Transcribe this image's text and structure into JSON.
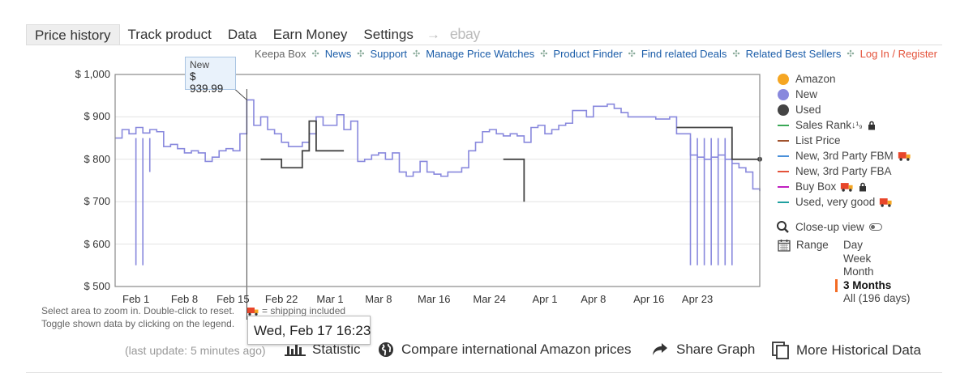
{
  "tabs": [
    "Price history",
    "Track product",
    "Data",
    "Earn Money",
    "Settings"
  ],
  "tab_arrow": "→",
  "tab_ebay": "ebay",
  "top_links": {
    "label": "Keepa Box",
    "sep": "✣",
    "items": [
      "News",
      "Support",
      "Manage Price Watches",
      "Product Finder",
      "Find related Deals",
      "Related Best Sellers",
      "Log In / Register"
    ]
  },
  "chart_data": {
    "type": "line",
    "ylim": [
      500,
      1000
    ],
    "yticks": [
      "$ 1,000",
      "$ 900",
      "$ 800",
      "$ 700",
      "$ 600",
      "$ 500"
    ],
    "xlim": [
      "Jan 29",
      "May 2"
    ],
    "xticks": [
      "Feb 1",
      "Feb 8",
      "Feb 15",
      "Feb 22",
      "Mar 1",
      "Mar 8",
      "Mar 16",
      "Mar 24",
      "Apr 1",
      "Apr 8",
      "Apr 16",
      "Apr 23"
    ],
    "series": [
      {
        "name": "New",
        "color": "#8888dd",
        "points": [
          [
            "Jan 29",
            850
          ],
          [
            "Jan 30",
            870
          ],
          [
            "Jan 31",
            860
          ],
          [
            "Feb 1",
            875
          ],
          [
            "Feb 2",
            862
          ],
          [
            "Feb 3",
            870
          ],
          [
            "Feb 4",
            865
          ],
          [
            "Feb 5",
            830
          ],
          [
            "Feb 6",
            835
          ],
          [
            "Feb 7",
            825
          ],
          [
            "Feb 8",
            815
          ],
          [
            "Feb 9",
            820
          ],
          [
            "Feb 10",
            815
          ],
          [
            "Feb 11",
            795
          ],
          [
            "Feb 12",
            805
          ],
          [
            "Feb 13",
            820
          ],
          [
            "Feb 14",
            825
          ],
          [
            "Feb 15",
            820
          ],
          [
            "Feb 16",
            860
          ],
          [
            "Feb 17",
            940
          ],
          [
            "Feb 18",
            880
          ],
          [
            "Feb 19",
            900
          ],
          [
            "Feb 20",
            870
          ],
          [
            "Feb 21",
            860
          ],
          [
            "Feb 22",
            840
          ],
          [
            "Feb 23",
            830
          ],
          [
            "Feb 24",
            830
          ],
          [
            "Feb 25",
            840
          ],
          [
            "Feb 26",
            860
          ],
          [
            "Feb 27",
            900
          ],
          [
            "Feb 28",
            880
          ],
          [
            "Mar 1",
            880
          ],
          [
            "Mar 2",
            905
          ],
          [
            "Mar 3",
            870
          ],
          [
            "Mar 4",
            890
          ],
          [
            "Mar 5",
            795
          ],
          [
            "Mar 6",
            800
          ],
          [
            "Mar 7",
            810
          ],
          [
            "Mar 8",
            815
          ],
          [
            "Mar 9",
            800
          ],
          [
            "Mar 10",
            815
          ],
          [
            "Mar 11",
            770
          ],
          [
            "Mar 12",
            760
          ],
          [
            "Mar 13",
            770
          ],
          [
            "Mar 14",
            795
          ],
          [
            "Mar 15",
            770
          ],
          [
            "Mar 16",
            765
          ],
          [
            "Mar 17",
            760
          ],
          [
            "Mar 18",
            770
          ],
          [
            "Mar 19",
            770
          ],
          [
            "Mar 20",
            780
          ],
          [
            "Mar 21",
            820
          ],
          [
            "Mar 22",
            840
          ],
          [
            "Mar 23",
            865
          ],
          [
            "Mar 24",
            870
          ],
          [
            "Mar 25",
            860
          ],
          [
            "Mar 26",
            855
          ],
          [
            "Mar 27",
            860
          ],
          [
            "Mar 28",
            855
          ],
          [
            "Mar 29",
            840
          ],
          [
            "Mar 30",
            875
          ],
          [
            "Mar 31",
            880
          ],
          [
            "Apr 1",
            860
          ],
          [
            "Apr 2",
            870
          ],
          [
            "Apr 3",
            880
          ],
          [
            "Apr 4",
            885
          ],
          [
            "Apr 5",
            915
          ],
          [
            "Apr 6",
            915
          ],
          [
            "Apr 7",
            900
          ],
          [
            "Apr 8",
            925
          ],
          [
            "Apr 9",
            925
          ],
          [
            "Apr 10",
            930
          ],
          [
            "Apr 11",
            920
          ],
          [
            "Apr 12",
            910
          ],
          [
            "Apr 13",
            900
          ],
          [
            "Apr 14",
            900
          ],
          [
            "Apr 15",
            900
          ],
          [
            "Apr 16",
            900
          ],
          [
            "Apr 17",
            895
          ],
          [
            "Apr 18",
            895
          ],
          [
            "Apr 19",
            900
          ],
          [
            "Apr 20",
            860
          ],
          [
            "Apr 21",
            860
          ],
          [
            "Apr 22",
            810
          ],
          [
            "Apr 23",
            805
          ],
          [
            "Apr 24",
            800
          ],
          [
            "Apr 25",
            805
          ],
          [
            "Apr 26",
            810
          ],
          [
            "Apr 27",
            800
          ],
          [
            "Apr 28",
            790
          ],
          [
            "Apr 29",
            780
          ],
          [
            "Apr 30",
            770
          ],
          [
            "May 1",
            730
          ],
          [
            "May 2",
            725
          ]
        ],
        "drops": [
          [
            "Feb 1",
            550
          ],
          [
            "Feb 2",
            550
          ],
          [
            "Feb 3",
            770
          ],
          [
            "Apr 22",
            550
          ],
          [
            "Apr 23",
            550
          ],
          [
            "Apr 24",
            550
          ],
          [
            "Apr 25",
            550
          ],
          [
            "Apr 26",
            550
          ],
          [
            "Apr 27",
            550
          ],
          [
            "Apr 28",
            550
          ]
        ]
      },
      {
        "name": "Used",
        "color": "#444444",
        "segments": [
          [
            [
              "Feb 19",
              800
            ],
            [
              "Feb 22",
              800
            ],
            [
              "Feb 22",
              780
            ],
            [
              "Feb 25",
              780
            ],
            [
              "Feb 25",
              820
            ],
            [
              "Feb 26",
              820
            ],
            [
              "Feb 26",
              890
            ],
            [
              "Feb 27",
              890
            ],
            [
              "Feb 27",
              820
            ],
            [
              "Mar 3",
              820
            ]
          ],
          [
            [
              "Mar 26",
              800
            ],
            [
              "Mar 29",
              800
            ],
            [
              "Mar 29",
              700
            ]
          ],
          [
            [
              "Apr 20",
              875
            ],
            [
              "Apr 28",
              875
            ],
            [
              "Apr 28",
              800
            ],
            [
              "May 2",
              800
            ]
          ]
        ]
      }
    ]
  },
  "tooltip": {
    "label": "New",
    "value": "$ 939.99"
  },
  "hover_date": "Wed, Feb 17 16:23",
  "legend": [
    {
      "label": "Amazon",
      "kind": "dot",
      "color": "#f5a623"
    },
    {
      "label": "New",
      "kind": "dot",
      "color": "#8888dd"
    },
    {
      "label": "Used",
      "kind": "dot",
      "color": "#444444"
    },
    {
      "label": "Sales Rank",
      "kind": "line",
      "color": "#3aa856",
      "extra": "↓¹₉",
      "lock": true
    },
    {
      "label": "List Price",
      "kind": "line",
      "color": "#a0522d"
    },
    {
      "label": "New, 3rd Party FBM",
      "kind": "line",
      "color": "#4a90d9",
      "truck": true
    },
    {
      "label": "New, 3rd Party FBA",
      "kind": "line",
      "color": "#e4523a"
    },
    {
      "label": "Buy Box",
      "kind": "line",
      "color": "#c020c0",
      "truck": true,
      "lock": true
    },
    {
      "label": "Used, very good",
      "kind": "line",
      "color": "#20a0a0",
      "truck": true
    }
  ],
  "closeup": "Close-up view",
  "range_label": "Range",
  "range_options": [
    "Day",
    "Week",
    "Month",
    "3 Months",
    "All (196 days)"
  ],
  "range_selected": "3 Months",
  "hint_line1": "Select area to zoom in. Double-click to reset.",
  "shipping_note": "= shipping included",
  "hint_line2": "Toggle shown data by clicking on the legend.",
  "last_update": "(last update: 5 minutes ago)",
  "actions": {
    "statistic": "Statistic",
    "compare": "Compare international Amazon prices",
    "share": "Share Graph",
    "more": "More Historical Data"
  }
}
